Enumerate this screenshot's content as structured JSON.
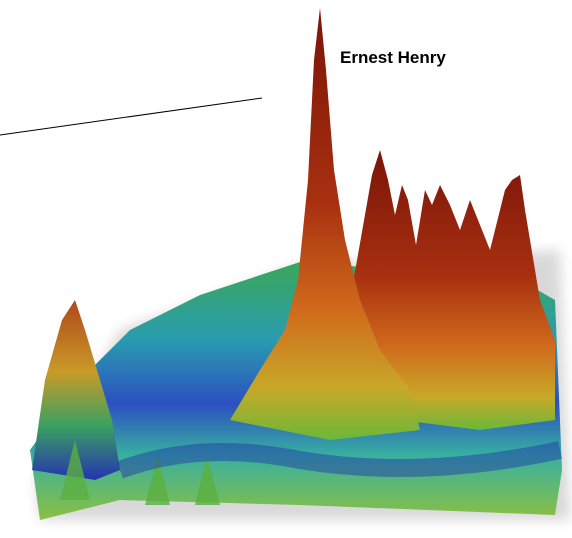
{
  "label": "Ernest Henry"
}
